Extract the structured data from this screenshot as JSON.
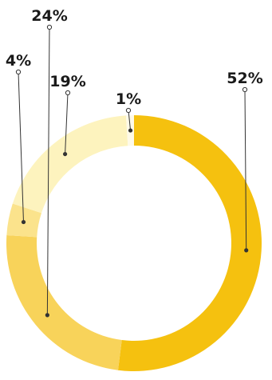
{
  "chart_data": {
    "type": "donut",
    "slices": [
      {
        "label": "52%",
        "value": 52,
        "color": "#f5c10f"
      },
      {
        "label": "24%",
        "value": 24,
        "color": "#f8d35a"
      },
      {
        "label": "4%",
        "value": 4,
        "color": "#fbe38c"
      },
      {
        "label": "19%",
        "value": 19,
        "color": "#fdf3be"
      },
      {
        "label": "1%",
        "value": 1,
        "color": "#fefae8"
      }
    ],
    "start_angle_deg": 0,
    "direction": "clockwise",
    "legend": "none",
    "title": ""
  }
}
